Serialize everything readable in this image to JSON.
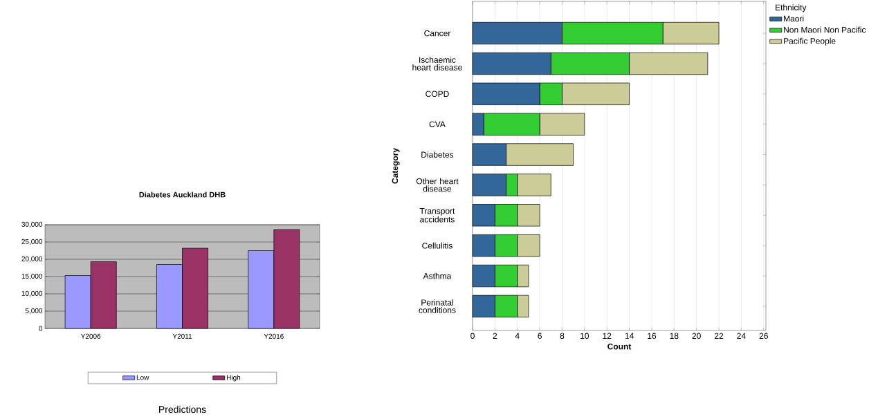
{
  "chart_data": [
    {
      "type": "bar",
      "title": "Diabetes Auckland DHB",
      "categories": [
        "Y2006",
        "Y2011",
        "Y2016"
      ],
      "series": [
        {
          "name": "Low",
          "color": "#9999ff",
          "values": [
            15300,
            18500,
            22500
          ]
        },
        {
          "name": "High",
          "color": "#993366",
          "values": [
            19300,
            23200,
            28600
          ]
        }
      ],
      "ylim": [
        0,
        30000
      ],
      "yticks": [
        0,
        {
          "value": 5000,
          "label": "5,000"
        },
        {
          "value": 10000,
          "label": "10,000"
        },
        {
          "value": 15000,
          "label": "15,000"
        },
        {
          "value": 20000,
          "label": "20,000"
        },
        {
          "value": 25000,
          "label": "25,000"
        },
        {
          "value": 30000,
          "label": "30,000"
        }
      ],
      "grid": "y",
      "legend": "bottom",
      "annotations": [
        "Predictions"
      ]
    },
    {
      "type": "bar",
      "orientation": "horizontal",
      "stacked": true,
      "xlabel": "Count",
      "ylabel": "Category",
      "legend_title": "Ethnicity",
      "categories": [
        "Cancer",
        "Ischaemic heart disease",
        "COPD",
        "CVA",
        "Diabetes",
        "Other heart disease",
        "Transport accidents",
        "Cellulitis",
        "Asthma",
        "Perinatal conditions"
      ],
      "series": [
        {
          "name": "Maori",
          "color": "#336699",
          "values": [
            8,
            7,
            6,
            1,
            3,
            3,
            2,
            2,
            2,
            2
          ]
        },
        {
          "name": "Non Maori Non Pacific",
          "color": "#33cc33",
          "values": [
            9,
            7,
            2,
            5,
            0,
            1,
            2,
            2,
            2,
            2
          ]
        },
        {
          "name": "Pacific People",
          "color": "#cccc99",
          "values": [
            5,
            7,
            6,
            4,
            6,
            3,
            2,
            2,
            1,
            1
          ]
        }
      ],
      "xlim": [
        0,
        26.2
      ],
      "xticks": [
        0,
        2,
        4,
        6,
        8,
        10,
        12,
        14,
        16,
        18,
        20,
        22,
        24,
        26
      ],
      "grid": "x",
      "legend": "top right"
    }
  ]
}
